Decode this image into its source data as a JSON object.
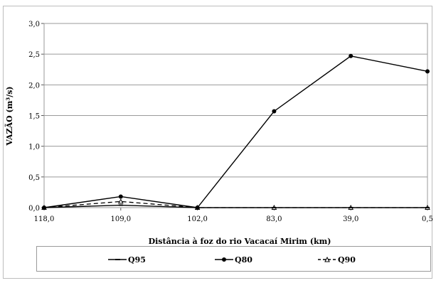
{
  "chart_data": {
    "type": "line",
    "title": "",
    "xlabel": "Distância à foz do rio Vacacaí Mirim (km)",
    "ylabel": "VAZÃO (m³/s)",
    "categories": [
      "118,0",
      "109,0",
      "102,0",
      "83,0",
      "39,0",
      "0,5"
    ],
    "ylim": [
      0,
      3
    ],
    "yticks": [
      "0,0",
      "0,5",
      "1,0",
      "1,5",
      "2,0",
      "2,5",
      "3,0"
    ],
    "grid": true,
    "legend_position": "bottom",
    "series": [
      {
        "name": "Q95",
        "values": [
          0.0,
          0.04,
          0.0,
          0.0,
          0.0,
          0.0
        ],
        "color": "#000000",
        "marker": "dash",
        "line": "solid"
      },
      {
        "name": "Q80",
        "values": [
          0.0,
          0.18,
          0.0,
          1.57,
          2.47,
          2.22
        ],
        "color": "#000000",
        "marker": "circle",
        "line": "solid"
      },
      {
        "name": "Q90",
        "values": [
          0.0,
          0.1,
          0.0,
          0.0,
          0.0,
          0.0
        ],
        "color": "#000000",
        "marker": "triangle",
        "line": "dashed"
      }
    ]
  }
}
